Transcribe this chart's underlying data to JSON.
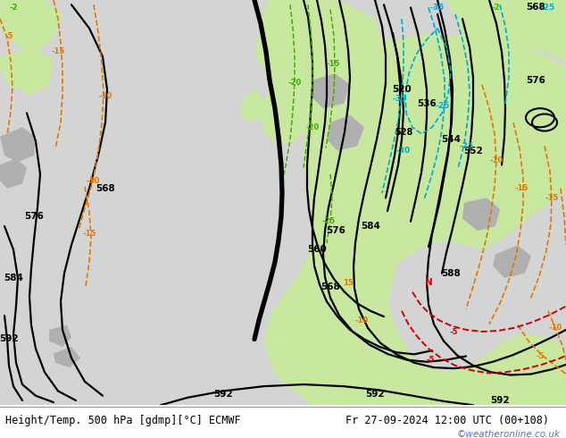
{
  "title_left": "Height/Temp. 500 hPa [gdmp][°C] ECMWF",
  "title_right": "Fr 27-09-2024 12:00 UTC (00+108)",
  "watermark": "©weatheronline.co.uk",
  "watermark_color": "#4477cc",
  "fig_width": 6.34,
  "fig_height": 4.9,
  "dpi": 100,
  "bg_gray": "#d8d8d8",
  "green_light": "#c8e8a0",
  "gray_land": "#aaaaaa",
  "sea_blue": "#b8d0e8"
}
